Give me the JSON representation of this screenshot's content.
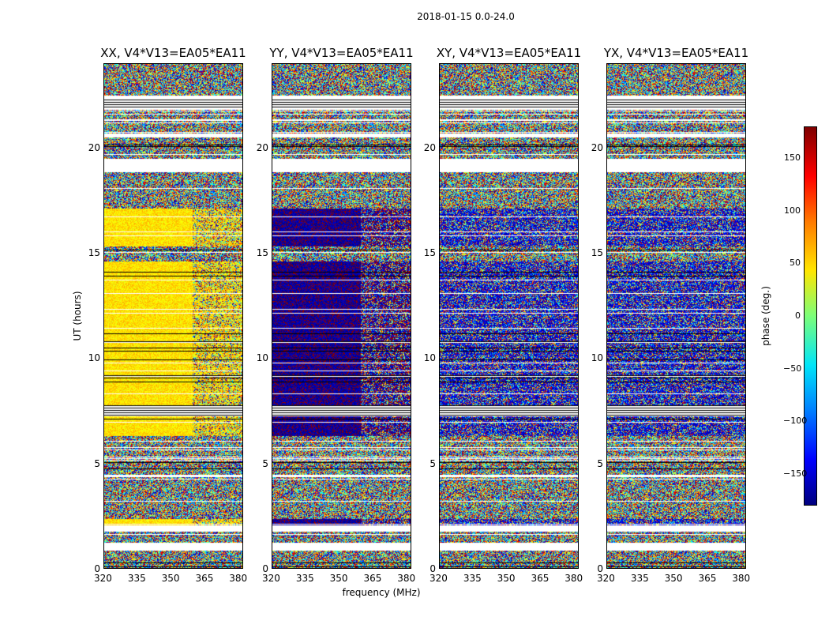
{
  "figure_title": "2018-01-15 0.0-24.0",
  "chart_data": [
    {
      "type": "heatmap",
      "title": "XX, V4*V13=EA05*EA11",
      "ylabel": "UT (hours)",
      "xlim": [
        320,
        382
      ],
      "ylim": [
        0,
        24
      ],
      "xticks": [
        "320",
        "335",
        "350",
        "365",
        "380"
      ],
      "yticks": [
        "0",
        "5",
        "10",
        "15",
        "20"
      ],
      "coherent_phase_deg": 55
    },
    {
      "type": "heatmap",
      "title": "YY, V4*V13=EA05*EA11",
      "xlabel": "frequency (MHz)",
      "xlim": [
        320,
        382
      ],
      "ylim": [
        0,
        24
      ],
      "xticks": [
        "320",
        "335",
        "350",
        "365",
        "380"
      ],
      "yticks": [
        "0",
        "5",
        "10",
        "15",
        "20"
      ],
      "coherent_phase_deg": -170
    },
    {
      "type": "heatmap",
      "title": "XY, V4*V13=EA05*EA11",
      "xlim": [
        320,
        382
      ],
      "ylim": [
        0,
        24
      ],
      "xticks": [
        "320",
        "335",
        "350",
        "365",
        "380"
      ],
      "yticks": [
        "0",
        "5",
        "10",
        "15",
        "20"
      ],
      "coherent_phase_deg": null
    },
    {
      "type": "heatmap",
      "title": "YX, V4*V13=EA05*EA11",
      "xlim": [
        320,
        382
      ],
      "ylim": [
        0,
        24
      ],
      "xticks": [
        "320",
        "335",
        "350",
        "365",
        "380"
      ],
      "yticks": [
        "0",
        "5",
        "10",
        "15",
        "20"
      ],
      "coherent_phase_deg": null
    }
  ],
  "colorbar": {
    "label": "phase (deg.)",
    "range": [
      -180,
      180
    ],
    "ticks": [
      "150",
      "100",
      "50",
      "0",
      "−50",
      "−100",
      "−150"
    ],
    "colormap": [
      "#00007f",
      "#0000ff",
      "#007fff",
      "#00e5f8",
      "#7cff79",
      "#ffe600",
      "#ff7a00",
      "#ff0000",
      "#7f0000"
    ]
  }
}
